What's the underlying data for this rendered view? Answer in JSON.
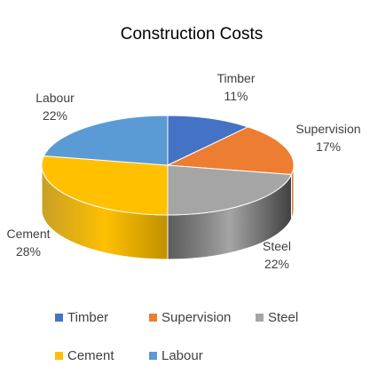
{
  "chart_data": {
    "type": "pie",
    "title": "Construction Costs",
    "three_d": true,
    "legend_position": "bottom",
    "slices": [
      {
        "label": "Timber",
        "value": 11,
        "display": "11%",
        "color": "#4472C4",
        "side_color": "#2F5597"
      },
      {
        "label": "Supervision",
        "value": 17,
        "display": "17%",
        "color": "#ED7D31",
        "side_color": "#B35A1F"
      },
      {
        "label": "Steel",
        "value": 22,
        "display": "22%",
        "color": "#A5A5A5",
        "side_color": "#404040"
      },
      {
        "label": "Cement",
        "value": 28,
        "display": "28%",
        "color": "#FFC000",
        "side_color": "#C09000"
      },
      {
        "label": "Labour",
        "value": 22,
        "display": "22%",
        "color": "#5B9BD5",
        "side_color": "#3C77AE"
      }
    ]
  }
}
